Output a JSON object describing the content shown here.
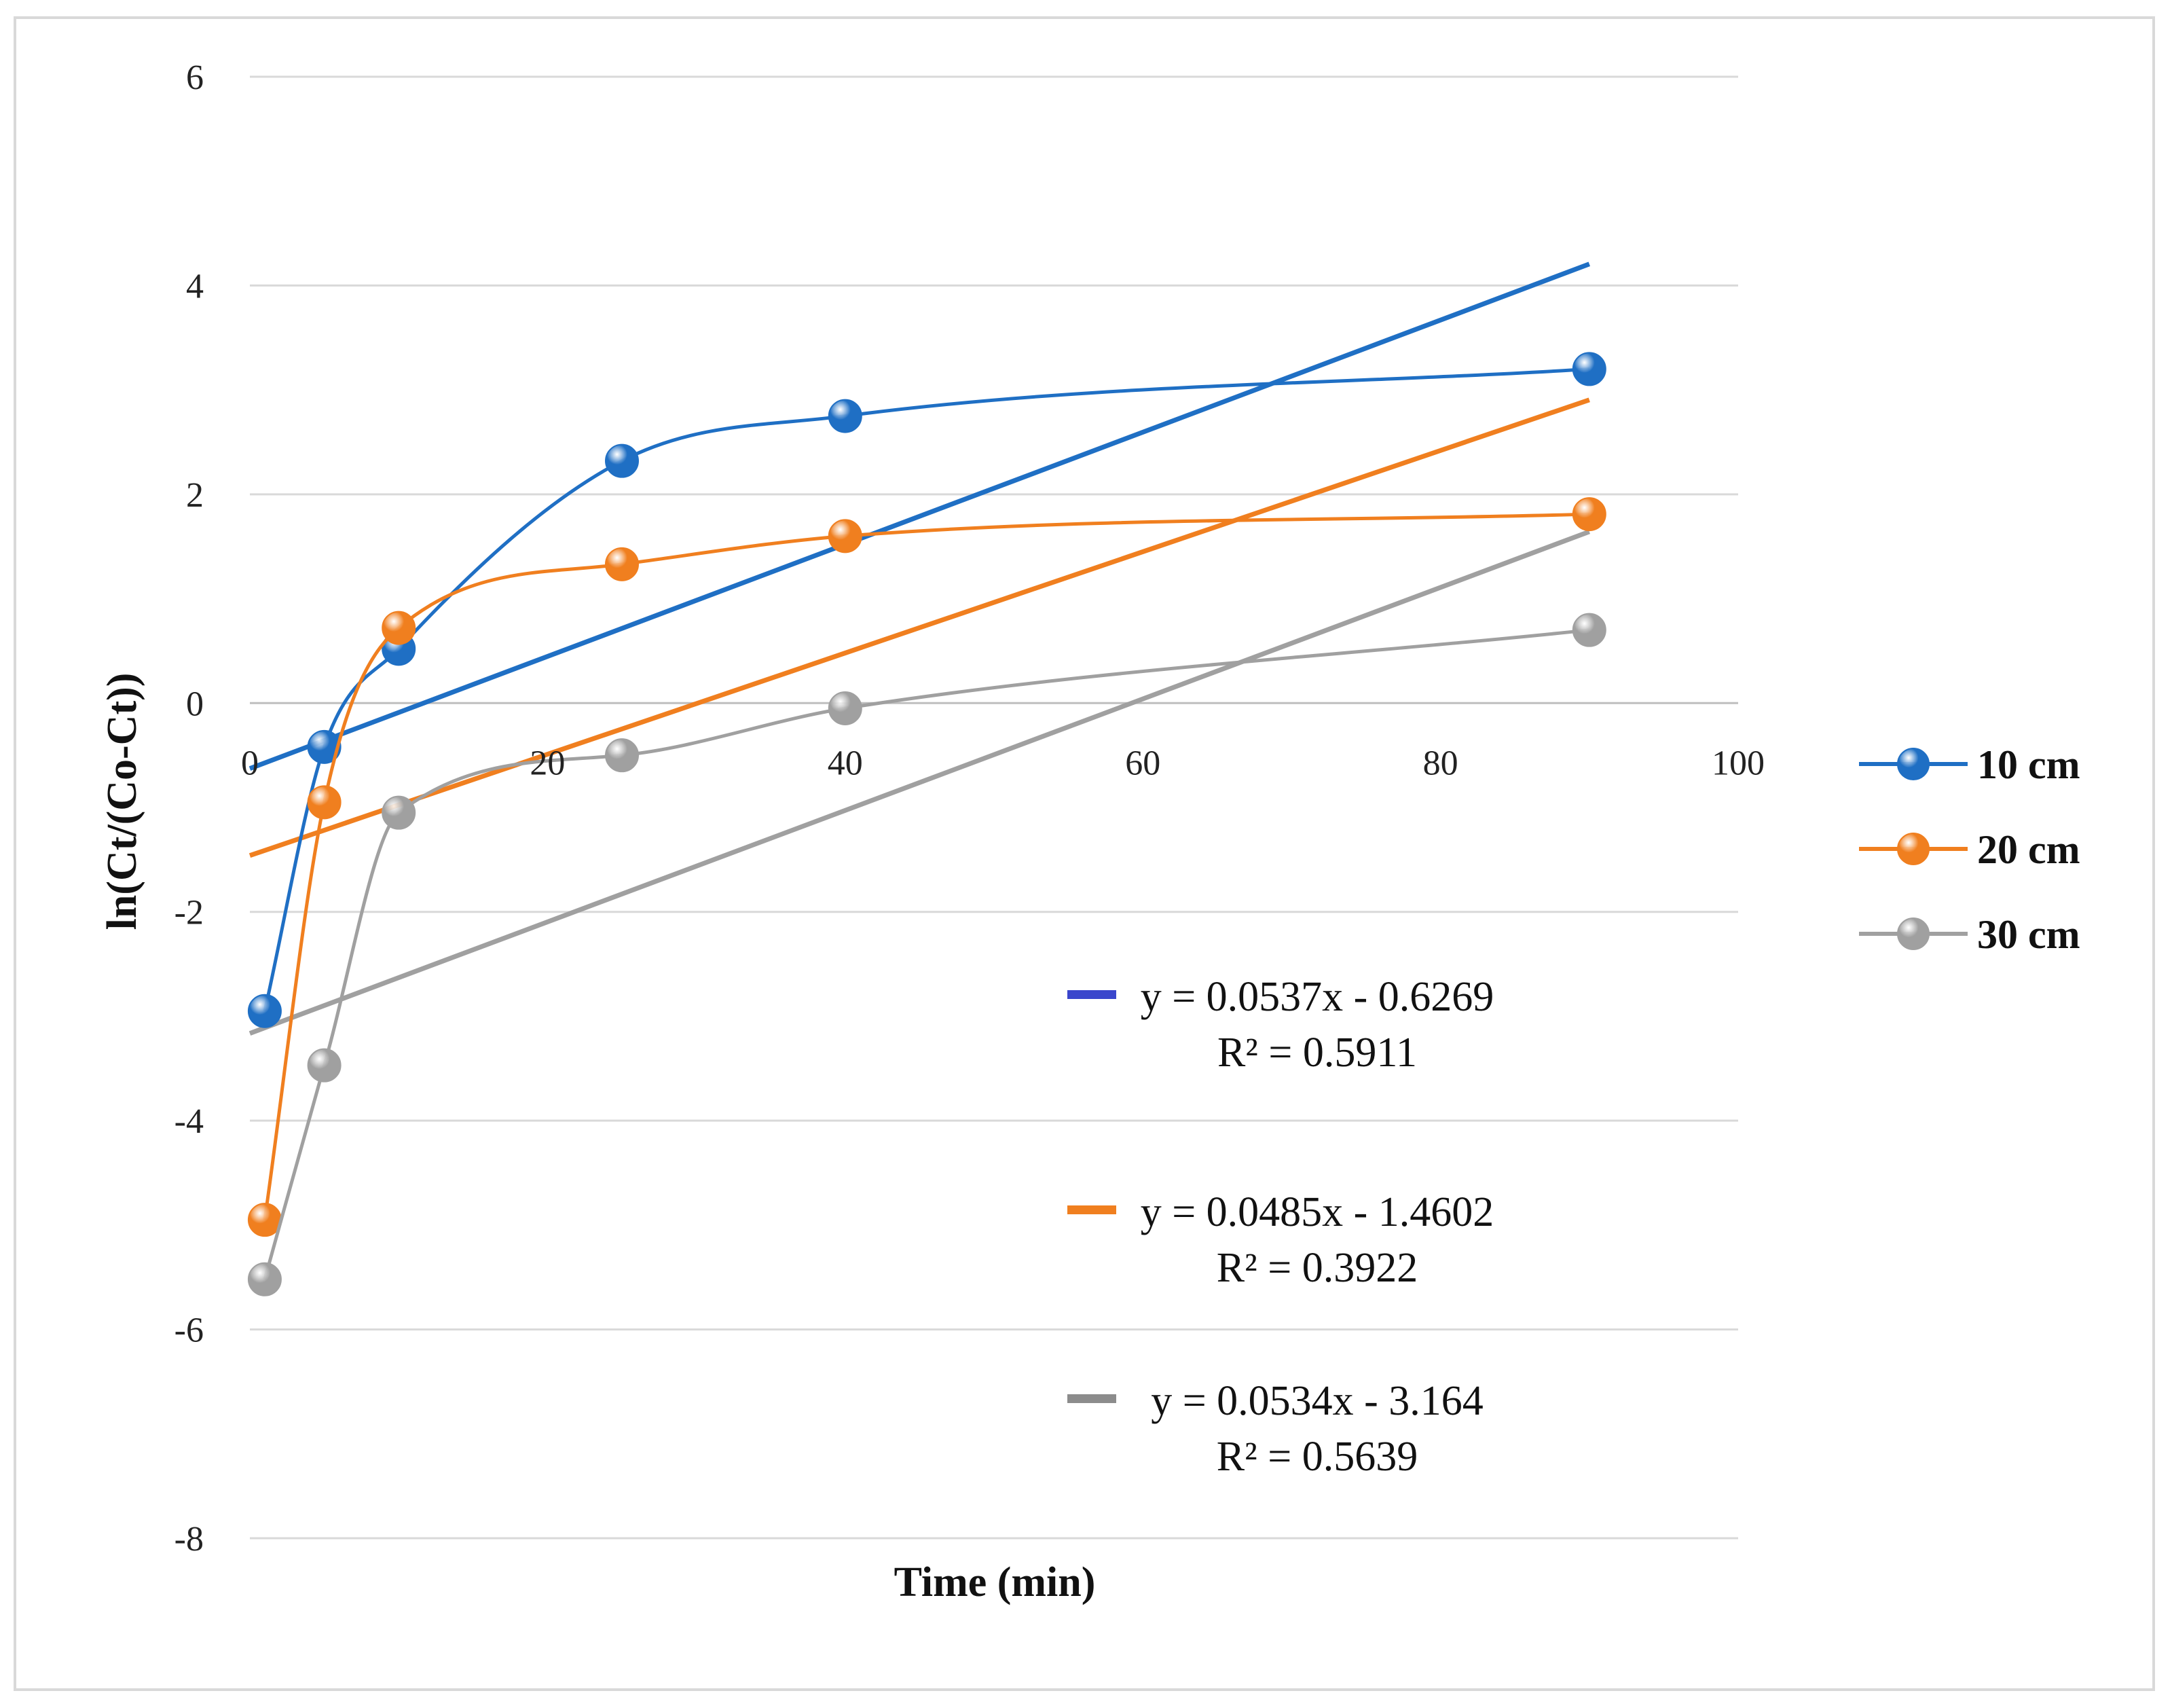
{
  "chart_data": {
    "type": "scatter",
    "title": "",
    "xlabel": "Time (min)",
    "ylabel": "ln(Ct/(Co-Ct))",
    "xlim": [
      0,
      100
    ],
    "ylim": [
      -8,
      6
    ],
    "x_ticks": [
      "0",
      "20",
      "40",
      "60",
      "80",
      "100"
    ],
    "y_ticks": [
      "6",
      "4",
      "2",
      "0",
      "-2",
      "-4",
      "-6",
      "-8"
    ],
    "grid": "horizontal",
    "legend_position": "right",
    "series": [
      {
        "name": "10 cm",
        "color": "#1f6fc4",
        "x": [
          1,
          5,
          10,
          25,
          40,
          90
        ],
        "y": [
          -2.95,
          -0.42,
          0.52,
          2.32,
          2.75,
          3.2
        ],
        "trendline": {
          "slope": 0.0537,
          "intercept": -0.6269,
          "x_range": [
            0,
            90
          ],
          "color": "#1f6fc4"
        },
        "equation": "y = 0.0537x - 0.6269",
        "r2": "R² = 0.5911",
        "equation_swatch_color": "#3a46cc"
      },
      {
        "name": "20 cm",
        "color": "#f07f1f",
        "x": [
          1,
          5,
          10,
          25,
          40,
          90
        ],
        "y": [
          -4.95,
          -0.95,
          0.72,
          1.33,
          1.6,
          1.81
        ],
        "trendline": {
          "slope": 0.0485,
          "intercept": -1.4602,
          "x_range": [
            0,
            90
          ],
          "color": "#f07f1f"
        },
        "equation": "y = 0.0485x - 1.4602",
        "r2": "R² = 0.3922",
        "equation_swatch_color": "#f07f1f"
      },
      {
        "name": "30 cm",
        "color": "#a0a0a0",
        "x": [
          1,
          5,
          10,
          25,
          40,
          90
        ],
        "y": [
          -5.52,
          -3.47,
          -1.05,
          -0.5,
          -0.05,
          0.7
        ],
        "trendline": {
          "slope": 0.0534,
          "intercept": -3.164,
          "x_range": [
            0,
            90
          ],
          "color": "#a0a0a0"
        },
        "equation": "y = 0.0534x - 3.164",
        "r2": "R² = 0.5639",
        "equation_swatch_color": "#8c8c8c"
      }
    ]
  }
}
